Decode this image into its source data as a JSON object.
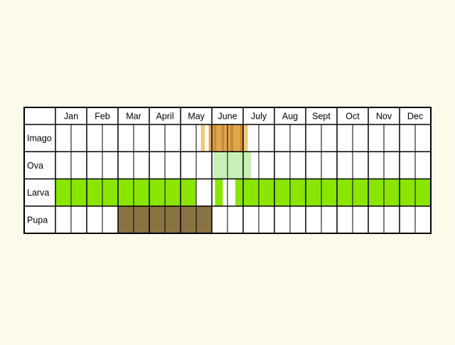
{
  "months": [
    "Jan",
    "Feb",
    "Mar",
    "April",
    "May",
    "June",
    "July",
    "Aug",
    "Sept",
    "Oct",
    "Nov",
    "Dec"
  ],
  "stages": [
    "Imago",
    "Ova",
    "Larva",
    "Pupa"
  ],
  "periods_per_month": 2,
  "colors": {
    "background": "#fcfbeb",
    "cell": "#ffffff",
    "grid": "#000000",
    "imago_light": "#f0c878",
    "imago_mid": "#e3a64f",
    "imago_dark": "#c98c33",
    "ova": "#c8f0b4",
    "larva": "#8ae600",
    "pupa": "#8a7342"
  },
  "chart_data": {
    "type": "phenology",
    "unit": "half-month",
    "stages": [
      {
        "name": "Imago",
        "bands": [
          {
            "start": 9.3,
            "end": 9.55,
            "color": "imago_light"
          },
          {
            "start": 9.8,
            "end": 10.1,
            "color": "imago_mid"
          },
          {
            "start": 10.1,
            "end": 10.3,
            "color": "imago_dark"
          },
          {
            "start": 10.3,
            "end": 10.6,
            "color": "imago_mid"
          },
          {
            "start": 10.6,
            "end": 10.8,
            "color": "imago_dark"
          },
          {
            "start": 10.8,
            "end": 11.15,
            "color": "imago_mid"
          },
          {
            "start": 11.15,
            "end": 11.4,
            "color": "imago_dark"
          },
          {
            "start": 11.4,
            "end": 11.8,
            "color": "imago_mid"
          },
          {
            "start": 11.8,
            "end": 12.0,
            "color": "imago_dark"
          },
          {
            "start": 12.0,
            "end": 12.3,
            "color": "imago_light"
          }
        ]
      },
      {
        "name": "Ova",
        "bands": [
          {
            "start": 10.1,
            "end": 12.5,
            "color": "ova"
          }
        ]
      },
      {
        "name": "Larva",
        "bands": [
          {
            "start": 0,
            "end": 9,
            "color": "larva"
          },
          {
            "start": 10.2,
            "end": 10.7,
            "color": "larva"
          },
          {
            "start": 11.5,
            "end": 24,
            "color": "larva"
          }
        ]
      },
      {
        "name": "Pupa",
        "bands": [
          {
            "start": 4,
            "end": 10,
            "color": "pupa"
          }
        ]
      }
    ]
  }
}
